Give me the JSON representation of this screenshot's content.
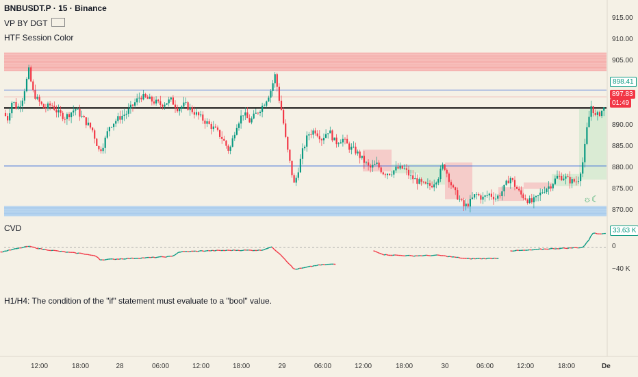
{
  "header": {
    "symbol_line": "BNBUSDT.P · 15 · Binance",
    "indicator1": "VP BY DGT ",
    "indicator2": "HTF Session Color"
  },
  "cvd_label": "CVD",
  "message": "H1/H4: The condition of the \"if\" statement must evaluate to a \"bool\" value.",
  "session_icon": "☼☾",
  "price_axis": {
    "ticks": [
      "915.00",
      "910.00",
      "905.00",
      "890.00",
      "885.00",
      "880.00",
      "875.00",
      "870.00"
    ],
    "boxes": {
      "green_level": {
        "text": "898.41",
        "color": "#089981"
      },
      "current_price": {
        "text": "897.83",
        "color": "#f23645"
      },
      "countdown": {
        "text": "01:49",
        "color": "#f23645"
      }
    }
  },
  "cvd_axis": {
    "ticks": [
      "0",
      "−40 K"
    ],
    "box": {
      "text": "33.63 K",
      "color": "#089981"
    }
  },
  "time_axis": {
    "ticks": [
      "12:00",
      "18:00",
      "28",
      "06:00",
      "12:00",
      "18:00",
      "29",
      "06:00",
      "12:00",
      "18:00",
      "30",
      "06:00",
      "12:00",
      "18:00",
      "De"
    ]
  },
  "chart_data": {
    "type": "candlestick",
    "yaxis_range": [
      867,
      917
    ],
    "levels": {
      "blue_lines": [
        898.41,
        880.6
      ],
      "black_line": 894.2,
      "red_line": 896.8,
      "red_zone": [
        902.8,
        907.2
      ],
      "blue_zone": [
        868.8,
        871.2
      ]
    },
    "price_path": [
      [
        0,
        893
      ],
      [
        4,
        895
      ],
      [
        10,
        891
      ],
      [
        18,
        896
      ],
      [
        25,
        894
      ],
      [
        32,
        896
      ],
      [
        38,
        900
      ],
      [
        42,
        903
      ],
      [
        48,
        898
      ],
      [
        55,
        896
      ],
      [
        65,
        894
      ],
      [
        75,
        895
      ],
      [
        85,
        893
      ],
      [
        95,
        892
      ],
      [
        110,
        894
      ],
      [
        125,
        891
      ],
      [
        135,
        889
      ],
      [
        145,
        884
      ],
      [
        152,
        886
      ],
      [
        160,
        890
      ],
      [
        175,
        892
      ],
      [
        185,
        893
      ],
      [
        195,
        895
      ],
      [
        205,
        897
      ],
      [
        220,
        896
      ],
      [
        235,
        895
      ],
      [
        250,
        896
      ],
      [
        260,
        894
      ],
      [
        270,
        895
      ],
      [
        285,
        893
      ],
      [
        300,
        891
      ],
      [
        315,
        889
      ],
      [
        325,
        887
      ],
      [
        335,
        884
      ],
      [
        345,
        890
      ],
      [
        355,
        893
      ],
      [
        365,
        891
      ],
      [
        375,
        893
      ],
      [
        385,
        895
      ],
      [
        395,
        898
      ],
      [
        402,
        902
      ],
      [
        407,
        897
      ],
      [
        412,
        893
      ],
      [
        418,
        886
      ],
      [
        425,
        880
      ],
      [
        430,
        876
      ],
      [
        436,
        880
      ],
      [
        442,
        884
      ],
      [
        450,
        888
      ],
      [
        460,
        889
      ],
      [
        470,
        887
      ],
      [
        480,
        889
      ],
      [
        490,
        886
      ],
      [
        500,
        887
      ],
      [
        510,
        885
      ],
      [
        520,
        884
      ],
      [
        530,
        882
      ],
      [
        540,
        880
      ],
      [
        550,
        881
      ],
      [
        560,
        879
      ],
      [
        570,
        879
      ],
      [
        580,
        880
      ],
      [
        590,
        880
      ],
      [
        600,
        878
      ],
      [
        610,
        877
      ],
      [
        620,
        876
      ],
      [
        630,
        876
      ],
      [
        640,
        878
      ],
      [
        648,
        881
      ],
      [
        655,
        878
      ],
      [
        662,
        875
      ],
      [
        670,
        873
      ],
      [
        678,
        871
      ],
      [
        686,
        872
      ],
      [
        695,
        874
      ],
      [
        705,
        873
      ],
      [
        715,
        874
      ],
      [
        725,
        873
      ],
      [
        735,
        875
      ],
      [
        745,
        878
      ],
      [
        752,
        876
      ],
      [
        760,
        874
      ],
      [
        768,
        873
      ],
      [
        776,
        872
      ],
      [
        784,
        873
      ],
      [
        794,
        875
      ],
      [
        804,
        876
      ],
      [
        814,
        878
      ],
      [
        824,
        878
      ],
      [
        834,
        877
      ],
      [
        844,
        877
      ],
      [
        852,
        882
      ],
      [
        858,
        890
      ],
      [
        864,
        895
      ],
      [
        870,
        892
      ],
      [
        876,
        893
      ],
      [
        882,
        894
      ],
      [
        886,
        895
      ]
    ],
    "cvd_path": [
      [
        0,
        -8
      ],
      [
        20,
        -3
      ],
      [
        40,
        2
      ],
      [
        60,
        -3
      ],
      [
        80,
        -6
      ],
      [
        100,
        -9
      ],
      [
        120,
        -11
      ],
      [
        140,
        -16
      ],
      [
        145,
        -22
      ],
      [
        180,
        -20
      ],
      [
        220,
        -18
      ],
      [
        250,
        -16
      ],
      [
        260,
        -8
      ],
      [
        300,
        -6
      ],
      [
        340,
        -5
      ],
      [
        380,
        -5
      ],
      [
        395,
        1
      ],
      [
        408,
        -12
      ],
      [
        420,
        -28
      ],
      [
        428,
        -39
      ],
      [
        440,
        -37
      ],
      [
        460,
        -32
      ],
      [
        480,
        -30
      ],
      [
        490,
        -30
      ]
    ],
    "cvd_path2": [
      [
        545,
        -6
      ],
      [
        560,
        -13
      ],
      [
        600,
        -15
      ],
      [
        640,
        -14
      ],
      [
        660,
        -17
      ],
      [
        680,
        -20
      ],
      [
        700,
        -20
      ],
      [
        727,
        -19
      ]
    ],
    "cvd_path3": [
      [
        745,
        -6
      ],
      [
        770,
        -5
      ],
      [
        790,
        -3
      ],
      [
        810,
        -2
      ],
      [
        830,
        -1
      ],
      [
        850,
        0
      ],
      [
        858,
        12
      ],
      [
        864,
        26
      ],
      [
        872,
        24
      ],
      [
        886,
        26
      ]
    ],
    "cvd_range": [
      -50,
      35
    ],
    "session_boxes": [
      {
        "x": [
          530,
          572
        ],
        "y": [
          879.3,
          884.4
        ],
        "color": "red"
      },
      {
        "x": [
          572,
          612
        ],
        "y": [
          878.9,
          881.0
        ],
        "color": "green"
      },
      {
        "x": [
          612,
          650
        ],
        "y": [
          876.2,
          881.0
        ],
        "color": "green"
      },
      {
        "x": [
          650,
          690
        ],
        "y": [
          872.8,
          881.4
        ],
        "color": "red"
      },
      {
        "x": [
          728,
          765
        ],
        "y": [
          872.4,
          875.6
        ],
        "color": "red"
      },
      {
        "x": [
          765,
          806
        ],
        "y": [
          875.2,
          876.7
        ],
        "color": "red"
      },
      {
        "x": [
          806,
          846
        ],
        "y": [
          875.9,
          878.7
        ],
        "color": "green"
      },
      {
        "x": [
          846,
          886
        ],
        "y": [
          877.4,
          893.9
        ],
        "color": "green"
      }
    ]
  }
}
